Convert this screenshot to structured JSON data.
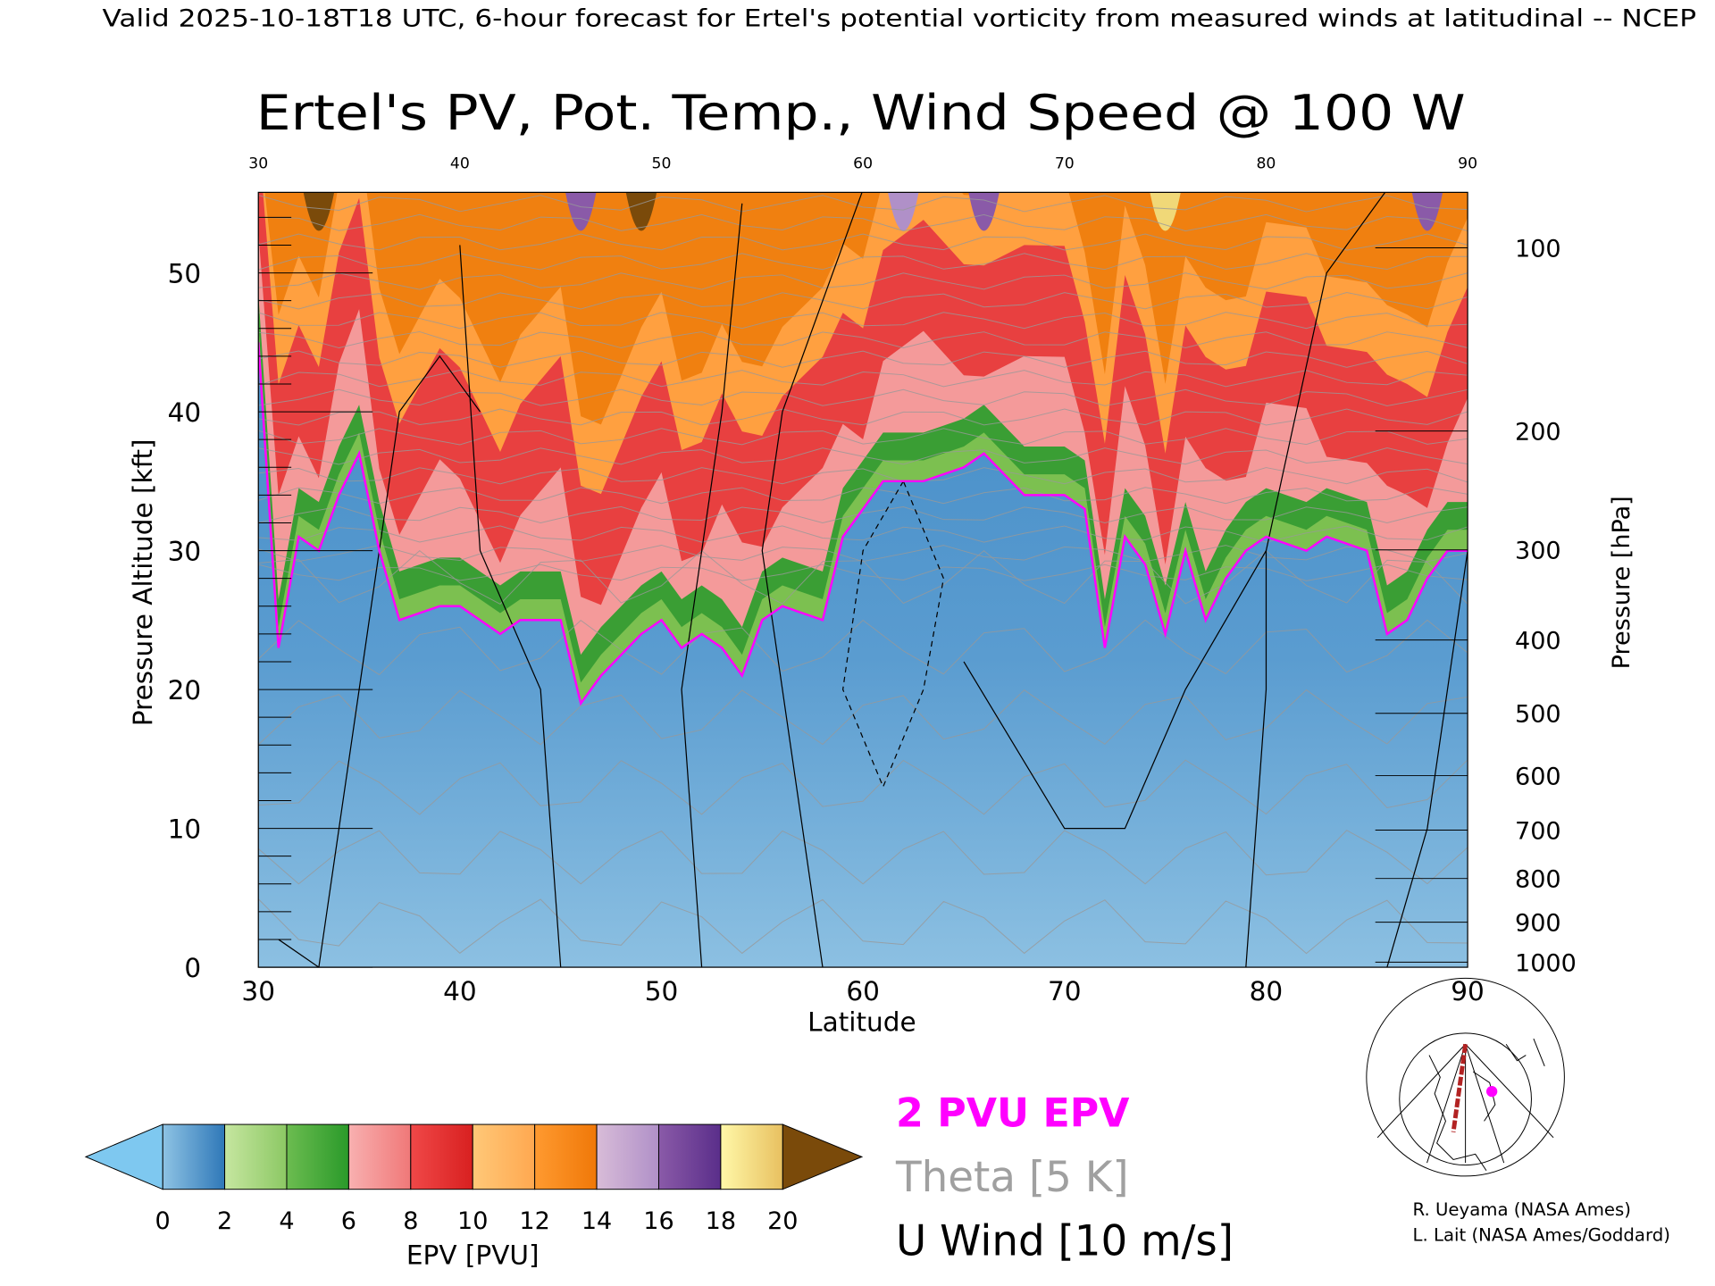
{
  "header": {
    "caption": "Valid 2025-10-18T18 UTC, 6-hour forecast for Ertel's potential vorticity from measured winds at latitudinal -- NCEP"
  },
  "chart_data": {
    "type": "heatmap",
    "title": "Ertel's PV, Pot. Temp., Wind Speed @ 100 W",
    "xlabel": "Latitude",
    "ylabel": "Pressure Altitude [kft]",
    "y2label": "Pressure [hPa]",
    "xlim": [
      30,
      90
    ],
    "ylim": [
      0,
      55.8
    ],
    "x_ticks": [
      "30",
      "40",
      "50",
      "60",
      "70",
      "80",
      "90"
    ],
    "x_tick_values": [
      30,
      40,
      50,
      60,
      70,
      80,
      90
    ],
    "y_ticks": [
      "0",
      "10",
      "20",
      "30",
      "40",
      "50"
    ],
    "y_tick_values": [
      0,
      10,
      20,
      30,
      40,
      50
    ],
    "pressure_ticks": [
      "100",
      "200",
      "300",
      "400",
      "500",
      "600",
      "700",
      "800",
      "900",
      "1000"
    ],
    "pressure_tick_values": [
      100,
      200,
      300,
      400,
      500,
      600,
      700,
      800,
      900,
      1000
    ],
    "pv2_boundary_kft": [
      [
        30,
        45
      ],
      [
        31,
        23
      ],
      [
        32,
        31
      ],
      [
        33,
        30
      ],
      [
        34,
        34
      ],
      [
        35,
        37
      ],
      [
        36,
        30
      ],
      [
        37,
        25
      ],
      [
        39,
        26
      ],
      [
        40,
        26
      ],
      [
        42,
        24
      ],
      [
        43,
        25
      ],
      [
        45,
        25
      ],
      [
        46,
        19
      ],
      [
        47,
        21
      ],
      [
        49,
        24
      ],
      [
        50,
        25
      ],
      [
        51,
        23
      ],
      [
        52,
        24
      ],
      [
        53,
        23
      ],
      [
        54,
        21
      ],
      [
        55,
        25
      ],
      [
        56,
        26
      ],
      [
        58,
        25
      ],
      [
        59,
        31
      ],
      [
        60,
        33
      ],
      [
        61,
        35
      ],
      [
        63,
        35
      ],
      [
        65,
        36
      ],
      [
        66,
        37
      ],
      [
        68,
        34
      ],
      [
        70,
        34
      ],
      [
        71,
        33
      ],
      [
        72,
        23
      ],
      [
        73,
        31
      ],
      [
        74,
        29
      ],
      [
        75,
        24
      ],
      [
        76,
        30
      ],
      [
        77,
        25
      ],
      [
        78,
        28
      ],
      [
        79,
        30
      ],
      [
        80,
        31
      ],
      [
        82,
        30
      ],
      [
        83,
        31
      ],
      [
        85,
        30
      ],
      [
        86,
        24
      ],
      [
        87,
        25
      ],
      [
        88,
        28
      ],
      [
        89,
        30
      ],
      [
        90,
        30
      ]
    ],
    "colorbar": {
      "label": "EPV [PVU]",
      "ticks": [
        "0",
        "2",
        "4",
        "6",
        "8",
        "10",
        "12",
        "14",
        "16",
        "18",
        "20"
      ],
      "under_color": "#7ec8f0",
      "over_color": "#7a4a0a",
      "bins": [
        [
          "#8ec3e4",
          "#2f78b8"
        ],
        [
          "#c6e6a0",
          "#8cc864"
        ],
        [
          "#6cbc50",
          "#2a9a2a"
        ],
        [
          "#f8b0b0",
          "#f07878"
        ],
        [
          "#f04848",
          "#d82020"
        ],
        [
          "#ffc878",
          "#ffa850"
        ],
        [
          "#ff9a30",
          "#f07808"
        ],
        [
          "#d8bcd8",
          "#b090c8"
        ],
        [
          "#8a5aa8",
          "#5a2e8a"
        ],
        [
          "#fff8a8",
          "#e8c060"
        ]
      ]
    },
    "legend": {
      "pv_line": "2 PVU EPV",
      "theta": "Theta [5 K]",
      "wind": "U Wind [10 m/s]",
      "pv_color": "#ff00ff",
      "theta_color": "#a0a0a0"
    }
  },
  "credits": {
    "line1": "R. Ueyama (NASA Ames)",
    "line2": "L. Lait (NASA Ames/Goddard)"
  }
}
